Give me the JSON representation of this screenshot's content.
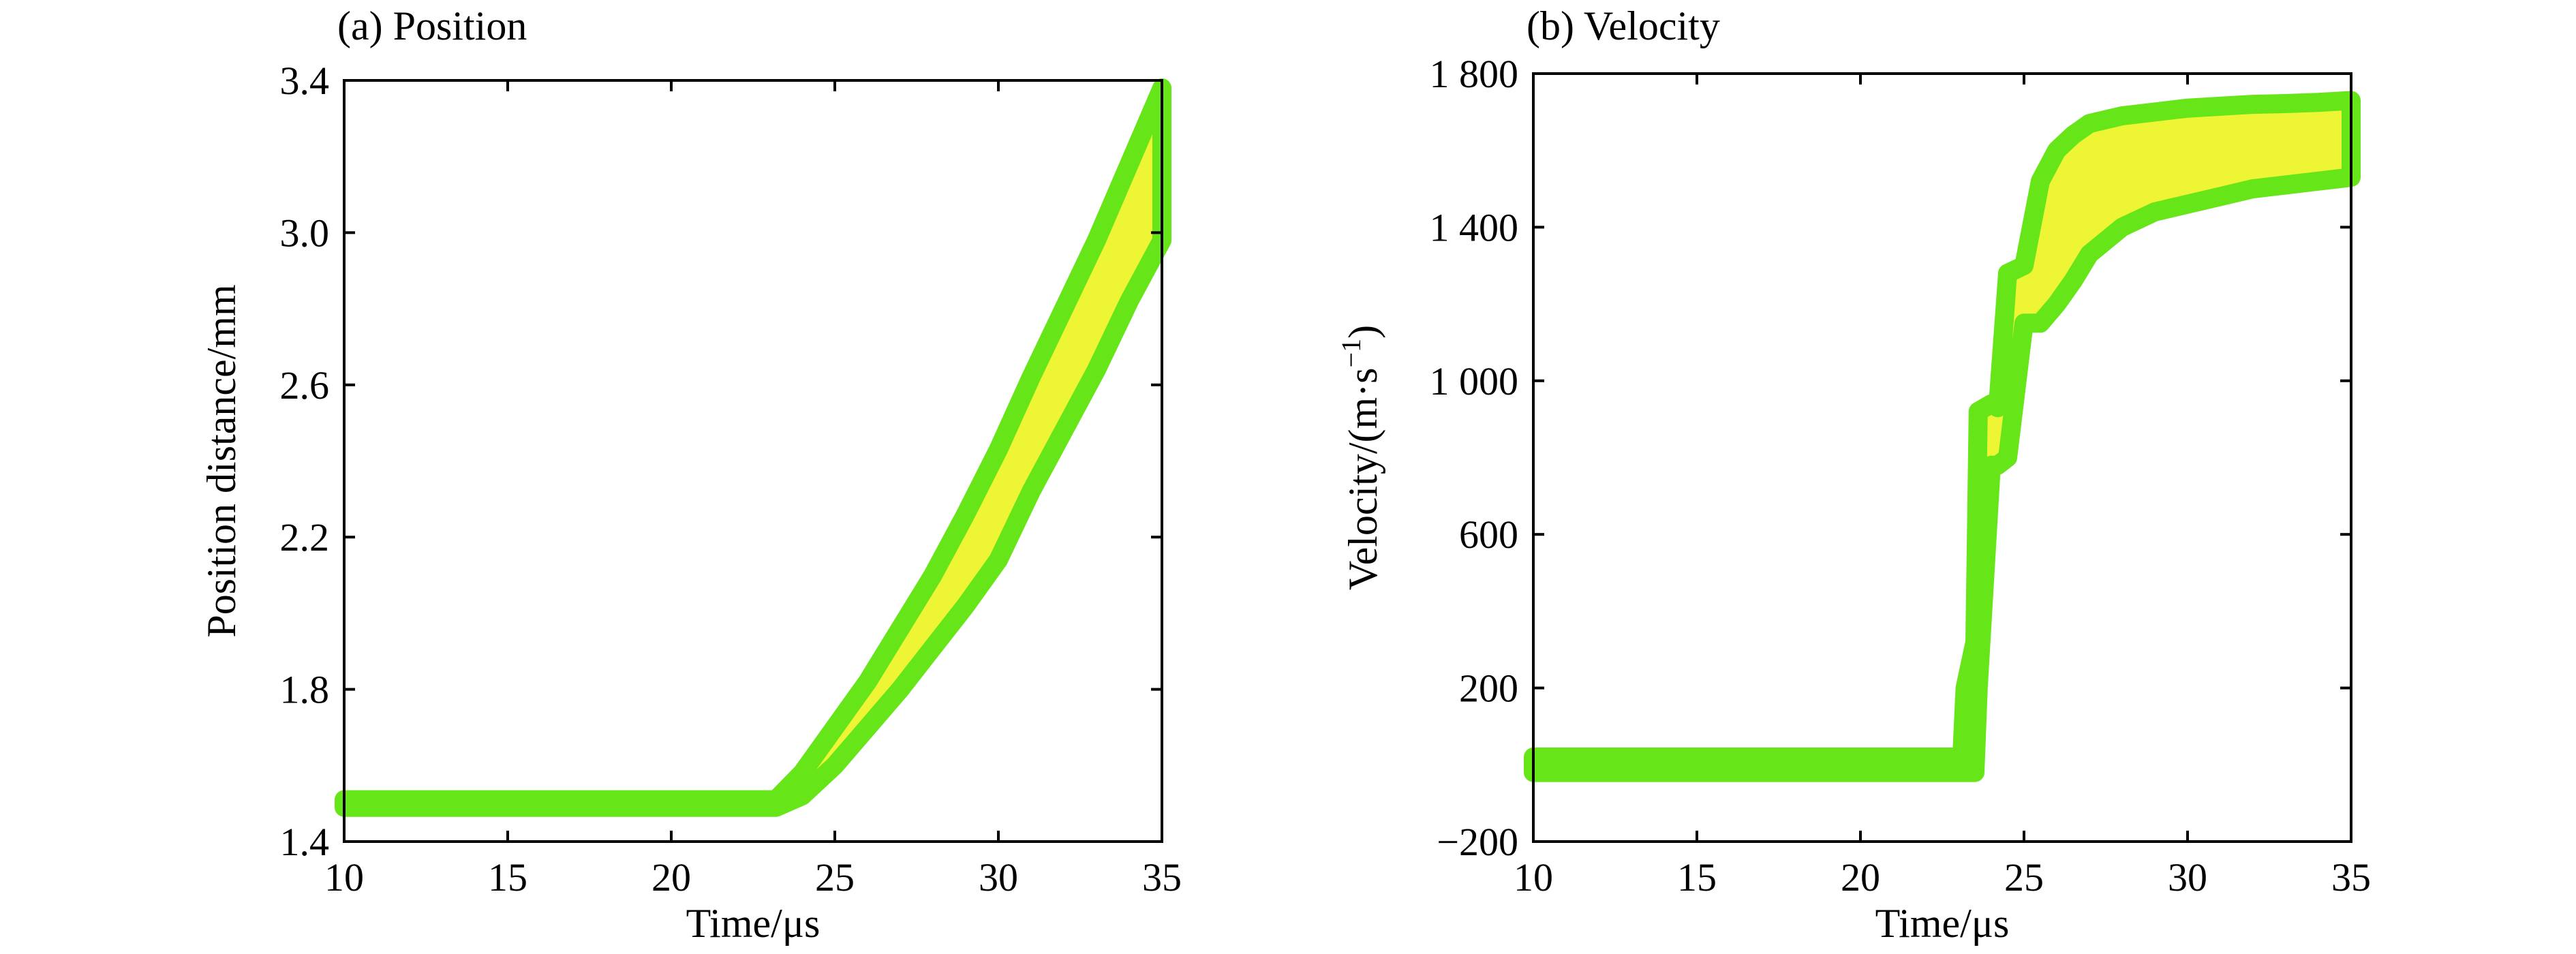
{
  "colors": {
    "band_outer": "#66e619",
    "band_inner": "#eef535",
    "axis": "#000000",
    "background": "#ffffff"
  },
  "chart_data": [
    {
      "type": "area",
      "title": "(a) Position",
      "xlabel": "Time/μs",
      "ylabel": "Position distance/mm",
      "xlim": [
        10,
        35
      ],
      "ylim": [
        1.4,
        3.4
      ],
      "xticks": [
        10,
        15,
        20,
        25,
        30,
        35
      ],
      "xtick_labels": [
        "10",
        "15",
        "20",
        "25",
        "30",
        "35"
      ],
      "yticks": [
        1.4,
        1.8,
        2.2,
        2.6,
        3.0,
        3.4
      ],
      "ytick_labels": [
        "1.4",
        "1.8",
        "2.2",
        "2.6",
        "3.0",
        "3.4"
      ],
      "grid": false,
      "series": [
        {
          "x": [
            10,
            23.2,
            24,
            25,
            26,
            27,
            28,
            29,
            30,
            31,
            32,
            33,
            34,
            35
          ],
          "lower": [
            1.49,
            1.49,
            1.52,
            1.6,
            1.7,
            1.8,
            1.91,
            2.02,
            2.14,
            2.32,
            2.48,
            2.64,
            2.82,
            2.98
          ],
          "upper": [
            1.51,
            1.51,
            1.58,
            1.7,
            1.82,
            1.96,
            2.1,
            2.26,
            2.43,
            2.62,
            2.8,
            2.98,
            3.18,
            3.38
          ]
        }
      ]
    },
    {
      "type": "area",
      "title": "(b) Velocity",
      "xlabel": "Time/μs",
      "ylabel": "Velocity/(m·s",
      "ylabel_sup": "−1",
      "ylabel_close": ")",
      "xlim": [
        10,
        35
      ],
      "ylim": [
        -200,
        1800
      ],
      "xticks": [
        10,
        15,
        20,
        25,
        30,
        35
      ],
      "xtick_labels": [
        "10",
        "15",
        "20",
        "25",
        "30",
        "35"
      ],
      "yticks": [
        -200,
        200,
        600,
        1000,
        1400,
        1800
      ],
      "ytick_labels": [
        "−200",
        "200",
        "600",
        "1 000",
        "1 400",
        "1 800"
      ],
      "grid": false,
      "series": [
        {
          "x": [
            10,
            23.1,
            23.2,
            23.5,
            23.6,
            24,
            24.2,
            24.5,
            25,
            25.5,
            26,
            26.5,
            27,
            28,
            29,
            30,
            31,
            32,
            33,
            34,
            35
          ],
          "lower": [
            -20,
            -20,
            -20,
            -20,
            200,
            780,
            780,
            800,
            1150,
            1150,
            1200,
            1260,
            1330,
            1400,
            1440,
            1460,
            1480,
            1500,
            1510,
            1520,
            1530
          ],
          "upper": [
            20,
            20,
            200,
            320,
            920,
            940,
            930,
            1280,
            1300,
            1520,
            1600,
            1640,
            1670,
            1690,
            1700,
            1710,
            1715,
            1720,
            1722,
            1725,
            1730
          ]
        }
      ]
    }
  ]
}
